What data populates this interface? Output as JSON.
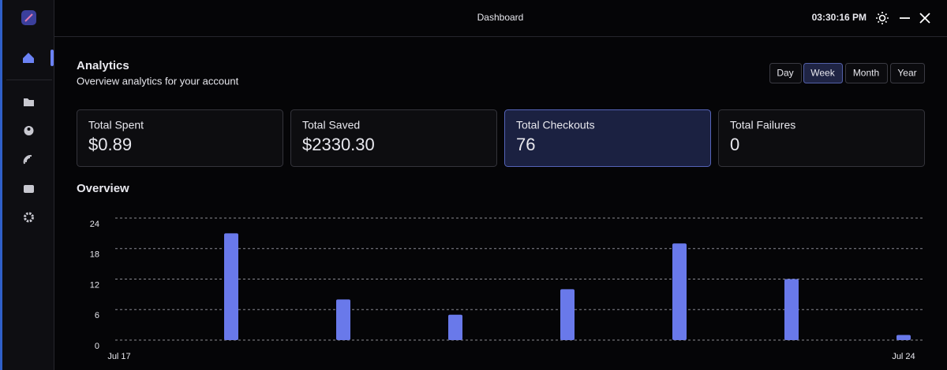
{
  "window": {
    "title": "Dashboard",
    "time": "03:30:16 PM"
  },
  "header": {
    "title": "Analytics",
    "subtitle": "Overview analytics for your account"
  },
  "range_buttons": {
    "options": [
      "Day",
      "Week",
      "Month",
      "Year"
    ],
    "selected_index": 1
  },
  "stats": [
    {
      "label": "Total Spent",
      "value": "$0.89",
      "color": "#6c7cf2"
    },
    {
      "label": "Total Saved",
      "value": "$2330.30",
      "color": "#6c7cf2"
    },
    {
      "label": "Total Checkouts",
      "value": "76",
      "color": "#7d88f7",
      "highlighted": true
    },
    {
      "label": "Total Failures",
      "value": "0",
      "color": "#f05a5a"
    }
  ],
  "chart_data": {
    "type": "bar",
    "title": "Overview",
    "categories": [
      "Jul 17",
      null,
      null,
      null,
      null,
      null,
      null,
      "Jul 24"
    ],
    "values": [
      0,
      21,
      8,
      5,
      10,
      19,
      12,
      1
    ],
    "color": "#6979ea",
    "ylim": [
      0,
      24
    ],
    "yticks": [
      0,
      6,
      12,
      18,
      24
    ],
    "grid": true
  }
}
